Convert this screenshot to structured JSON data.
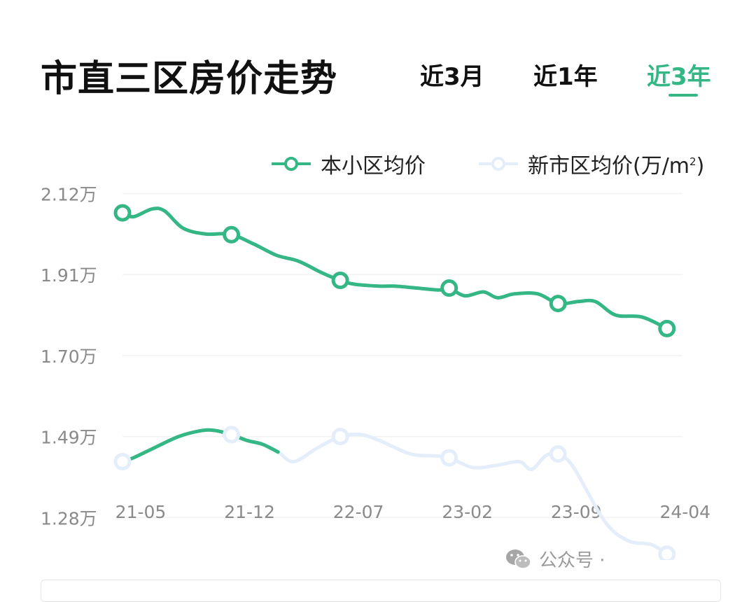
{
  "header": {
    "title": "市直三区房价走势",
    "tabs": [
      {
        "label": "近3月",
        "active": false
      },
      {
        "label": "近1年",
        "active": false
      },
      {
        "label": "近3年",
        "active": true
      }
    ]
  },
  "legend": {
    "series1": "本小区均价",
    "series2_prefix": "新市区均价(万/m",
    "series2_sup": "2",
    "series2_suffix": ")"
  },
  "watermark": {
    "text": "公众号 · ",
    "icon": "wechat-icon"
  },
  "colors": {
    "accent": "#34b784",
    "series2": "#e4eefb",
    "grid": "#f1f3f3",
    "axis_text": "#8a8a8a"
  },
  "chart_data": {
    "type": "line",
    "title": "市直三区房价走势",
    "xlabel": "",
    "ylabel": "",
    "unit": "万/m²",
    "ylim": [
      1.17,
      2.15
    ],
    "yticks": [
      2.12,
      1.91,
      1.7,
      1.49,
      1.28
    ],
    "ytick_labels": [
      "2.12万",
      "1.91万",
      "1.70万",
      "1.49万",
      "1.28万"
    ],
    "xlim": [
      0,
      36
    ],
    "xticks": [
      0,
      7,
      14,
      21,
      28,
      35
    ],
    "xtick_labels": [
      "21-05",
      "21-12",
      "22-07",
      "23-02",
      "23-09",
      "24-04"
    ],
    "grid": true,
    "legend_position": "top-right",
    "series": [
      {
        "name": "本小区均价",
        "color": "#34b784",
        "x": [
          0,
          0.7,
          1.9,
          2.7,
          3.9,
          5.4,
          6.9,
          8.4,
          9.9,
          11.3,
          12.8,
          14.0,
          14.9,
          16.5,
          17.5,
          18.9,
          20.4,
          21.0,
          22.0,
          23.2,
          24.1,
          25.2,
          26.7,
          28.0,
          29.3,
          30.4,
          31.7,
          33.4,
          35.0
        ],
        "y": [
          2.07,
          2.06,
          2.08,
          2.075,
          2.03,
          2.015,
          2.015,
          1.99,
          1.96,
          1.945,
          1.915,
          1.895,
          1.885,
          1.88,
          1.88,
          1.875,
          1.87,
          1.875,
          1.855,
          1.865,
          1.85,
          1.86,
          1.86,
          1.835,
          1.84,
          1.84,
          1.805,
          1.8,
          1.77
        ],
        "markers_x": [
          0,
          7,
          14,
          21,
          28,
          35
        ],
        "segments": [
          {
            "x": [
              0,
              0.7,
              2.0,
              3.6,
              5.0,
              5.9,
              7.0,
              8.0,
              9.0,
              10.0
            ],
            "y": [
              1.425,
              1.435,
              1.46,
              1.49,
              1.505,
              1.506,
              1.495,
              1.48,
              1.47,
              1.45
            ]
          }
        ]
      },
      {
        "name": "新市区均价(万/m²)",
        "color": "#e4eefb",
        "x": [
          0,
          0.7,
          2.0,
          3.6,
          5.0,
          5.9,
          7.0,
          8.0,
          9.0,
          10.0,
          11.0,
          12.5,
          14.0,
          15.3,
          16.5,
          18.5,
          20.0,
          21.0,
          22.5,
          24.0,
          25.5,
          26.3,
          27.2,
          28.0,
          29.0,
          31.0,
          32.5,
          34.0,
          35.0
        ],
        "y": [
          1.425,
          1.435,
          1.46,
          1.49,
          1.505,
          1.506,
          1.495,
          1.48,
          1.47,
          1.45,
          1.425,
          1.46,
          1.49,
          1.495,
          1.48,
          1.445,
          1.44,
          1.435,
          1.41,
          1.415,
          1.425,
          1.405,
          1.44,
          1.445,
          1.41,
          1.27,
          1.22,
          1.21,
          1.185
        ],
        "markers_x": [
          0,
          7,
          14,
          21,
          28,
          35
        ]
      }
    ]
  }
}
